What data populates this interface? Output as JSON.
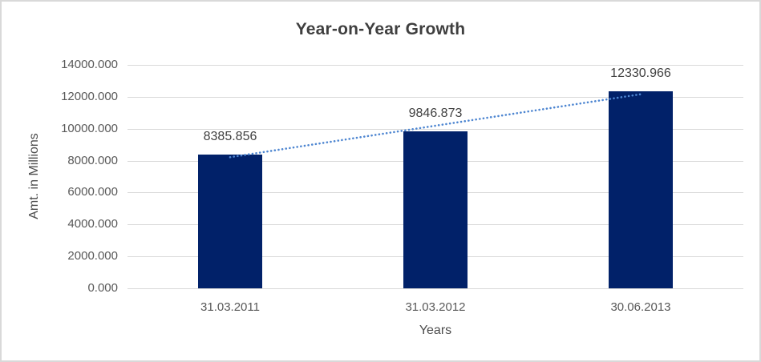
{
  "chart_data": {
    "type": "bar",
    "title": "Year-on-Year Growth",
    "xlabel": "Years",
    "ylabel": "Amt. in Millions",
    "categories": [
      "31.03.2011",
      "31.03.2012",
      "30.06.2013"
    ],
    "values": [
      8385.856,
      9846.873,
      12330.966
    ],
    "data_labels": [
      "8385.856",
      "9846.873",
      "12330.966"
    ],
    "ylim": [
      0,
      14000
    ],
    "ytick_step": 2000,
    "ytick_labels": [
      "0.000",
      "2000.000",
      "4000.000",
      "6000.000",
      "8000.000",
      "10000.000",
      "12000.000",
      "14000.000"
    ],
    "grid": "horizontal-gridlines-on",
    "legend": "none",
    "trendline": {
      "type": "linear",
      "style": "dotted"
    },
    "colors": {
      "bar": "#012169",
      "trendline": "#4e86d1",
      "gridline": "#d9d9d9",
      "title_text": "#3f3f3f",
      "tick_text": "#595959",
      "data_label_text": "#404040",
      "axis_title_text": "#4d4d4d",
      "border": "#d9d9d9",
      "background": "#ffffff"
    }
  }
}
